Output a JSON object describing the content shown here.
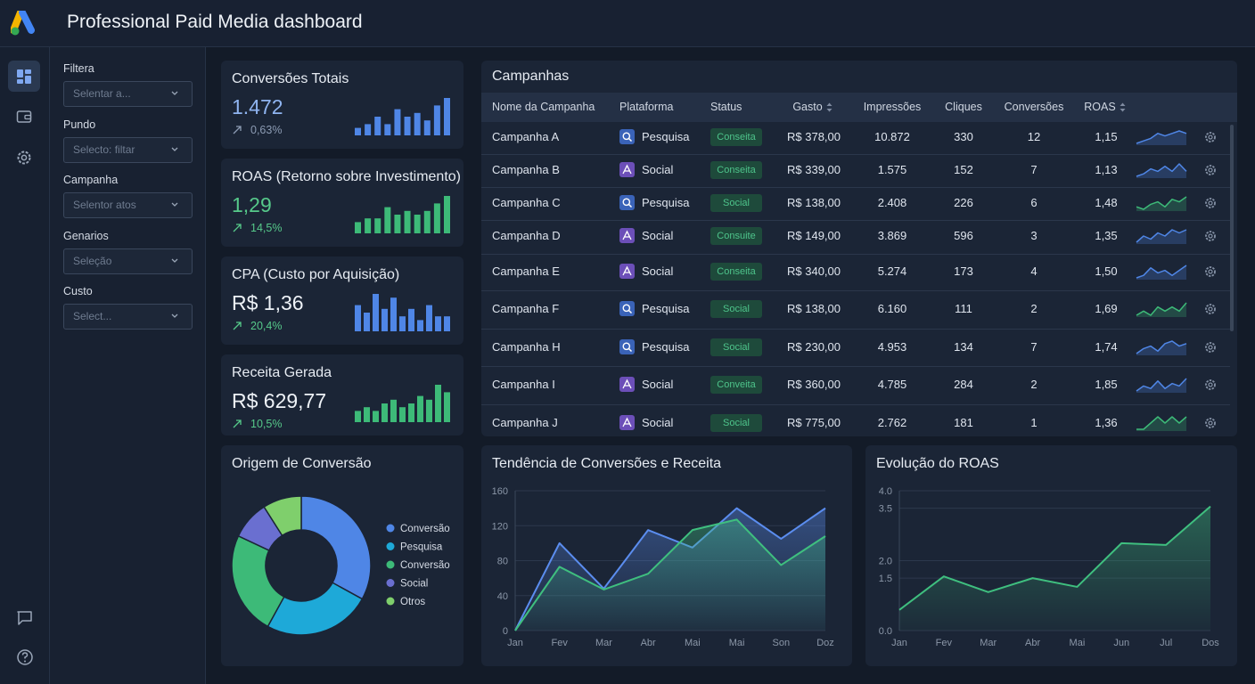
{
  "header": {
    "title": "Professional Paid Media dashboard"
  },
  "filters": [
    {
      "label": "Filtera",
      "placeholder": "Selentar a..."
    },
    {
      "label": "Pundo",
      "placeholder": "Selecto: filtar"
    },
    {
      "label": "Campanha",
      "placeholder": "Selentor atos"
    },
    {
      "label": "Genarios",
      "placeholder": "Seleção"
    },
    {
      "label": "Custo",
      "placeholder": "Select..."
    }
  ],
  "kpis": [
    {
      "title": "Conversões Totais",
      "value": "1.472",
      "change": "0,63%",
      "color": "#4f86e6",
      "value_color": "#8fb4f0",
      "change_color": "#8c9bb3",
      "bars": [
        2,
        3,
        5,
        3,
        7,
        5,
        6,
        4,
        8,
        10
      ]
    },
    {
      "title": "ROAS (Retorno sobre Investimento)",
      "value": "1,29",
      "change": "14,5%",
      "color": "#3dba78",
      "value_color": "#56c98a",
      "change_color": "#56c98a",
      "bars": [
        3,
        4,
        4,
        7,
        5,
        6,
        5,
        6,
        8,
        10
      ]
    },
    {
      "title": "CPA (Custo por Aquisição)",
      "value": "R$ 1,36",
      "change": "20,4%",
      "color": "#4f86e6",
      "value_color": "#eef2f7",
      "change_color": "#56c98a",
      "bars": [
        7,
        5,
        10,
        6,
        9,
        4,
        6,
        3,
        7,
        4,
        4
      ]
    },
    {
      "title": "Receita Gerada",
      "value": "R$ 629,77",
      "change": "10,5%",
      "color": "#3dba78",
      "value_color": "#eef2f7",
      "change_color": "#56c98a",
      "bars": [
        3,
        4,
        3,
        5,
        6,
        4,
        5,
        7,
        6,
        10,
        8
      ]
    }
  ],
  "table": {
    "title": "Campanhas",
    "columns": [
      "Nome da Campanha",
      "Plataforma",
      "Status",
      "Gasto",
      "Impressões",
      "Cliques",
      "Conversões",
      "ROAS"
    ],
    "rows": [
      [
        "Campanha A",
        "Pesquisa",
        "Conseita",
        "R$ 378,00",
        "10.872",
        "330",
        "12",
        "1,15"
      ],
      [
        "Campanha B",
        "Social",
        "Conseita",
        "R$ 339,00",
        "1.575",
        "152",
        "7",
        "1,13"
      ],
      [
        "Campanha C",
        "Pesquisa",
        "Social",
        "R$ 138,00",
        "2.408",
        "226",
        "6",
        "1,48"
      ],
      [
        "Campanha D",
        "Social",
        "Consuite",
        "R$ 149,00",
        "3.869",
        "596",
        "3",
        "1,35"
      ],
      [
        "Campanha E",
        "Social",
        "Conseita",
        "R$ 340,00",
        "5.274",
        "173",
        "4",
        "1,50"
      ],
      [
        "Campanha F",
        "Pesquisa",
        "Social",
        "R$ 138,00",
        "6.160",
        "111",
        "2",
        "1,69"
      ],
      [
        "Campanha H",
        "Pesquisa",
        "Social",
        "R$ 230,00",
        "4.953",
        "134",
        "7",
        "1,74"
      ],
      [
        "Campanha I",
        "Social",
        "Conveita",
        "R$ 360,00",
        "4.785",
        "284",
        "2",
        "1,85"
      ],
      [
        "Campanha J",
        "Social",
        "Social",
        "R$ 775,00",
        "2.762",
        "181",
        "1",
        "1,36"
      ]
    ],
    "sparklines": [
      [
        2,
        3,
        4,
        6,
        5,
        6,
        7,
        6
      ],
      [
        2,
        3,
        5,
        4,
        6,
        4,
        7,
        4
      ],
      [
        3,
        2,
        4,
        5,
        3,
        6,
        5,
        7
      ],
      [
        2,
        4,
        3,
        5,
        4,
        6,
        5,
        6
      ],
      [
        2,
        3,
        6,
        4,
        5,
        3,
        5,
        7
      ],
      [
        3,
        4,
        3,
        5,
        4,
        5,
        4,
        6
      ],
      [
        2,
        4,
        5,
        3,
        6,
        7,
        5,
        6
      ],
      [
        2,
        4,
        3,
        6,
        3,
        5,
        4,
        7
      ],
      [
        3,
        3,
        4,
        5,
        4,
        5,
        4,
        5
      ]
    ],
    "sparkline_colors": [
      "#4f86e6",
      "#4f86e6",
      "#3dba78",
      "#4f86e6",
      "#4f86e6",
      "#3dba78",
      "#4f86e6",
      "#4f86e6",
      "#3dba78"
    ]
  },
  "chart_data": [
    {
      "type": "donut",
      "title": "Origem de Conversão",
      "categories": [
        "Conversão",
        "Pesquisa",
        "Conversão",
        "Social",
        "Otros"
      ],
      "values": [
        33,
        25,
        24,
        9,
        9
      ],
      "colors": [
        "#4f86e6",
        "#1ea9d8",
        "#3dba78",
        "#6a6fd0",
        "#7fcf6c"
      ]
    },
    {
      "type": "area",
      "title": "Tendência de Conversões e Receita",
      "categories": [
        "Jan",
        "Fev",
        "Mar",
        "Abr",
        "Mai",
        "Mai",
        "Son",
        "Doz"
      ],
      "series": [
        {
          "color": "#5b8def",
          "values": [
            0,
            100,
            48,
            115,
            95,
            140,
            105,
            140
          ]
        },
        {
          "color": "#3fbf7f",
          "values": [
            0,
            73,
            47,
            65,
            115,
            127,
            75,
            108
          ]
        }
      ],
      "ylim": [
        0,
        160
      ],
      "yticks": [
        0,
        40,
        80,
        120,
        160
      ],
      "grid": true
    },
    {
      "type": "area",
      "title": "Evolução do ROAS",
      "categories": [
        "Jan",
        "Fev",
        "Mar",
        "Abr",
        "Mai",
        "Jun",
        "Jul",
        "Dos"
      ],
      "color": "#3fbf7f",
      "values": [
        0.59,
        1.55,
        1.1,
        1.5,
        1.25,
        2.5,
        2.45,
        3.55
      ],
      "ylim": [
        0,
        4
      ],
      "yticks": [
        {
          "value": 0,
          "label": "0.0"
        },
        {
          "value": 1.5,
          "label": "1.5"
        },
        {
          "value": 2,
          "label": "2.0"
        },
        {
          "value": 3.5,
          "label": "3.5"
        },
        {
          "value": 4,
          "label": "4.0"
        }
      ],
      "grid": true
    }
  ]
}
